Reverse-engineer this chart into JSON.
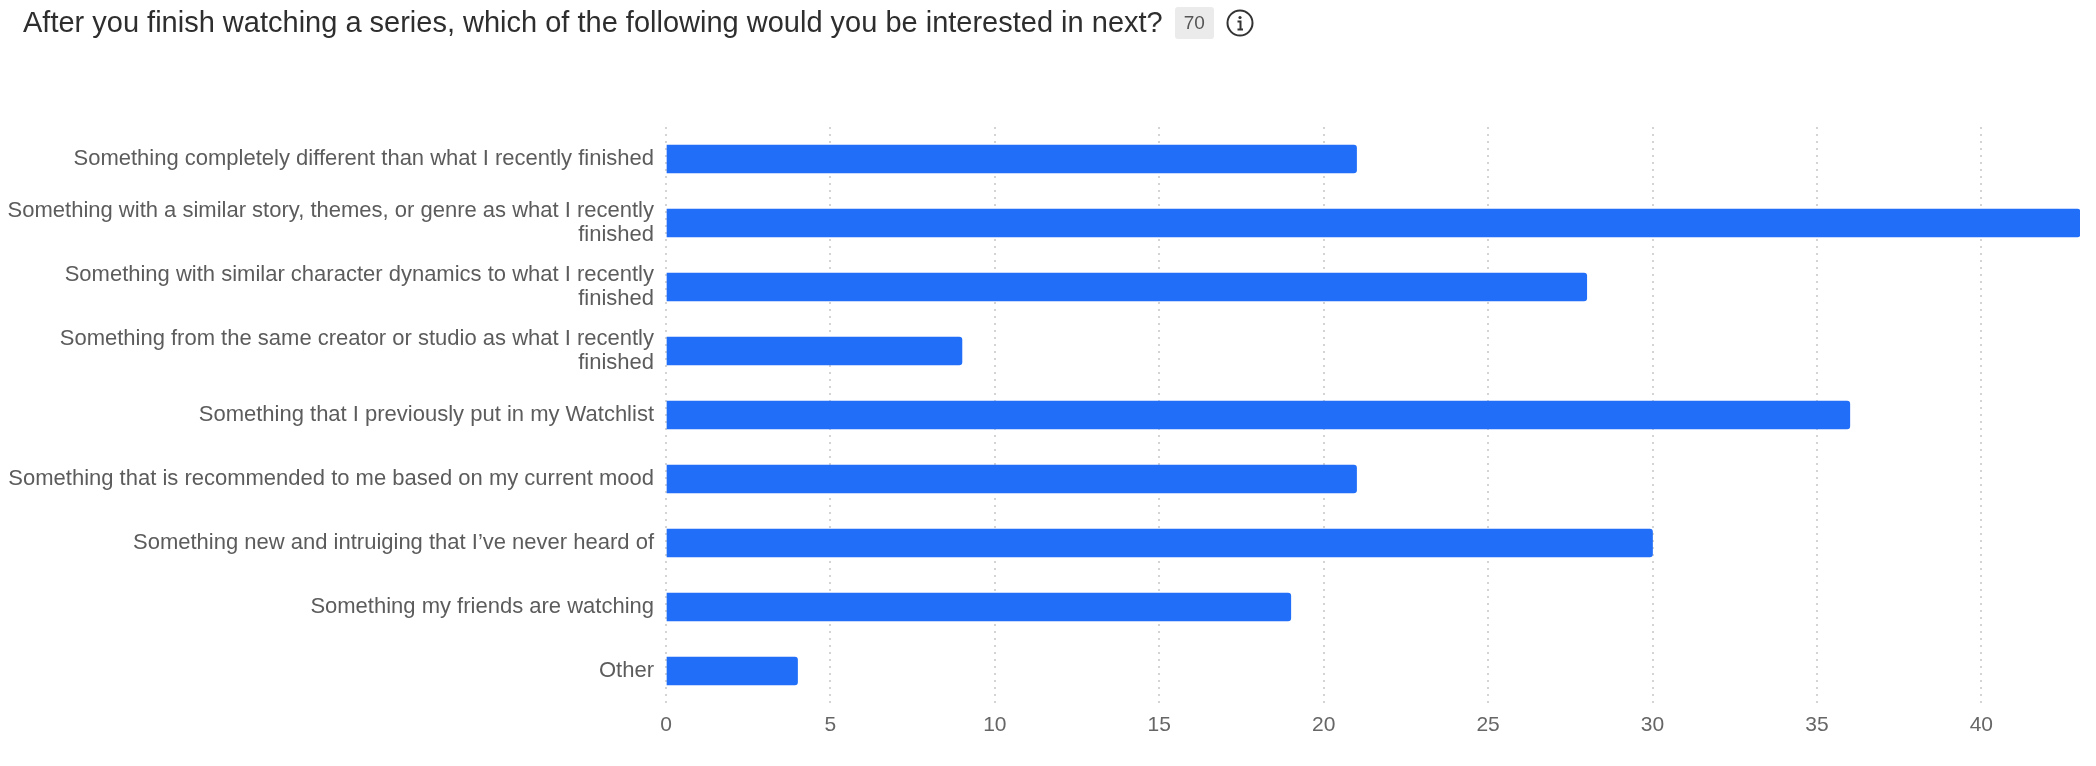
{
  "chart_data": {
    "type": "bar",
    "orientation": "horizontal",
    "title": "After you finish watching a series, which of the following would you be interested in next?",
    "subtitle": "70",
    "categories": [
      "Something completely different than what I recently finished",
      "Something with a similar story, themes, or genre as what I recently finished",
      "Something with similar character dynamics to what I recently finished",
      "Something from the same creator or studio as what I recently finished",
      "Something that I previously put in my Watchlist",
      "Something that is recommended to me based on my current mood",
      "Something new and intruiging that I’ve never heard of",
      "Something my friends are watching",
      "Other"
    ],
    "values": [
      21,
      43,
      28,
      9,
      36,
      21,
      30,
      19,
      4
    ],
    "color": "#216ef8",
    "xlim": [
      0,
      43
    ],
    "xticks": [
      0,
      5,
      10,
      15,
      20,
      25,
      30,
      35,
      40
    ],
    "grid": "x"
  }
}
